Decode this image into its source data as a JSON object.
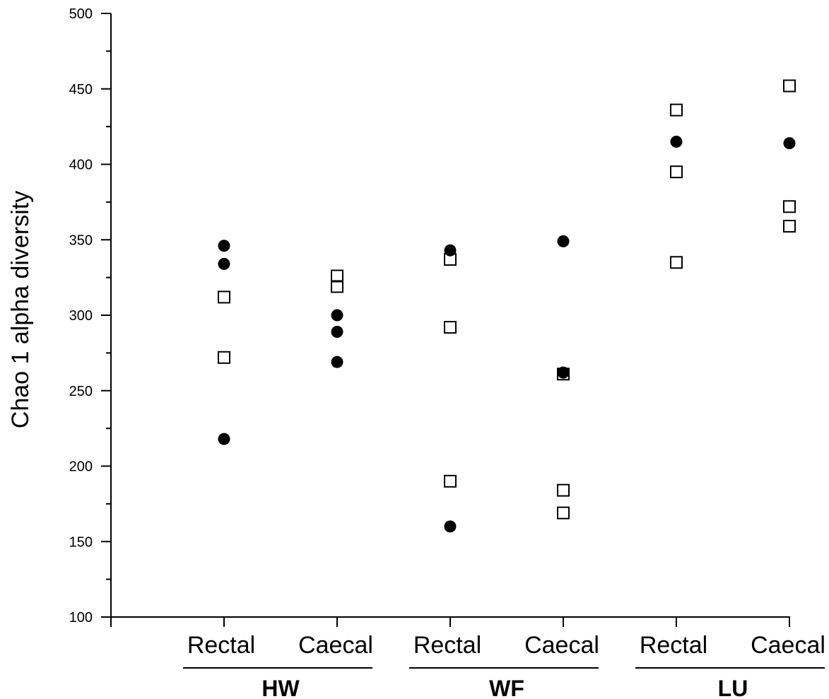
{
  "chart_data": {
    "type": "scatter",
    "ylabel": "Chao 1 alpha diversity",
    "ylim": [
      100,
      500
    ],
    "yticks": [
      "100",
      "150",
      "200",
      "250",
      "300",
      "350",
      "400",
      "450",
      "500"
    ],
    "categories": [
      "Rectal",
      "Caecal",
      "Rectal",
      "Caecal",
      "Rectal",
      "Caecal"
    ],
    "groups": [
      {
        "label": "HW",
        "categories": [
          0,
          1
        ]
      },
      {
        "label": "WF",
        "categories": [
          2,
          3
        ]
      },
      {
        "label": "LU",
        "categories": [
          4,
          5
        ]
      }
    ],
    "grid": false,
    "legend": "none",
    "series": [
      {
        "marker": "filled-circle",
        "points": [
          {
            "cat": 0,
            "y": 346
          },
          {
            "cat": 0,
            "y": 334
          },
          {
            "cat": 0,
            "y": 218
          },
          {
            "cat": 1,
            "y": 300
          },
          {
            "cat": 1,
            "y": 289
          },
          {
            "cat": 1,
            "y": 269
          },
          {
            "cat": 2,
            "y": 343
          },
          {
            "cat": 2,
            "y": 160
          },
          {
            "cat": 3,
            "y": 349
          },
          {
            "cat": 3,
            "y": 262
          },
          {
            "cat": 4,
            "y": 415
          },
          {
            "cat": 5,
            "y": 414
          }
        ]
      },
      {
        "marker": "open-square",
        "points": [
          {
            "cat": 0,
            "y": 312
          },
          {
            "cat": 0,
            "y": 272
          },
          {
            "cat": 1,
            "y": 326
          },
          {
            "cat": 1,
            "y": 319
          },
          {
            "cat": 2,
            "y": 337
          },
          {
            "cat": 2,
            "y": 292
          },
          {
            "cat": 2,
            "y": 190
          },
          {
            "cat": 3,
            "y": 261
          },
          {
            "cat": 3,
            "y": 184
          },
          {
            "cat": 3,
            "y": 169
          },
          {
            "cat": 4,
            "y": 436
          },
          {
            "cat": 4,
            "y": 395
          },
          {
            "cat": 4,
            "y": 335
          },
          {
            "cat": 5,
            "y": 452
          },
          {
            "cat": 5,
            "y": 372
          },
          {
            "cat": 5,
            "y": 359
          }
        ]
      }
    ],
    "colors": {
      "marker": "#000000",
      "axis": "#000000"
    }
  }
}
